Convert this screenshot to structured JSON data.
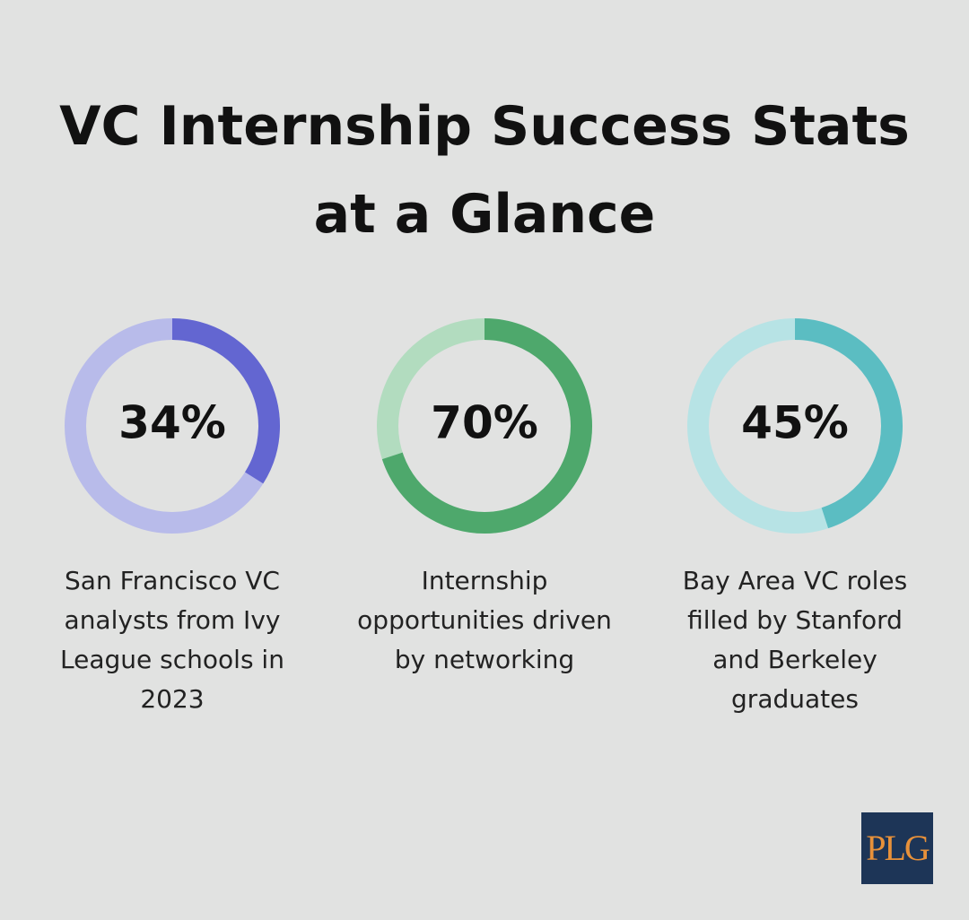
{
  "title": "VC Internship Success Stats at a Glance",
  "chart_data": [
    {
      "type": "donut",
      "values": [
        34
      ],
      "value_labels": [
        "34%"
      ],
      "ylim": [
        0,
        100
      ],
      "color": "#6366d1",
      "track_color": "#b8bbea",
      "caption": "San Francisco VC analysts from Ivy League schools in 2023"
    },
    {
      "type": "donut",
      "values": [
        70
      ],
      "value_labels": [
        "70%"
      ],
      "ylim": [
        0,
        100
      ],
      "color": "#4ea86c",
      "track_color": "#b2dcbf",
      "caption": "Internship opportunities driven by networking"
    },
    {
      "type": "donut",
      "values": [
        45
      ],
      "value_labels": [
        "45%"
      ],
      "ylim": [
        0,
        100
      ],
      "color": "#5bbdc2",
      "track_color": "#b7e3e5",
      "caption": "Bay Area VC roles filled by Stanford and Berkeley graduates"
    }
  ],
  "logo": "PLG"
}
